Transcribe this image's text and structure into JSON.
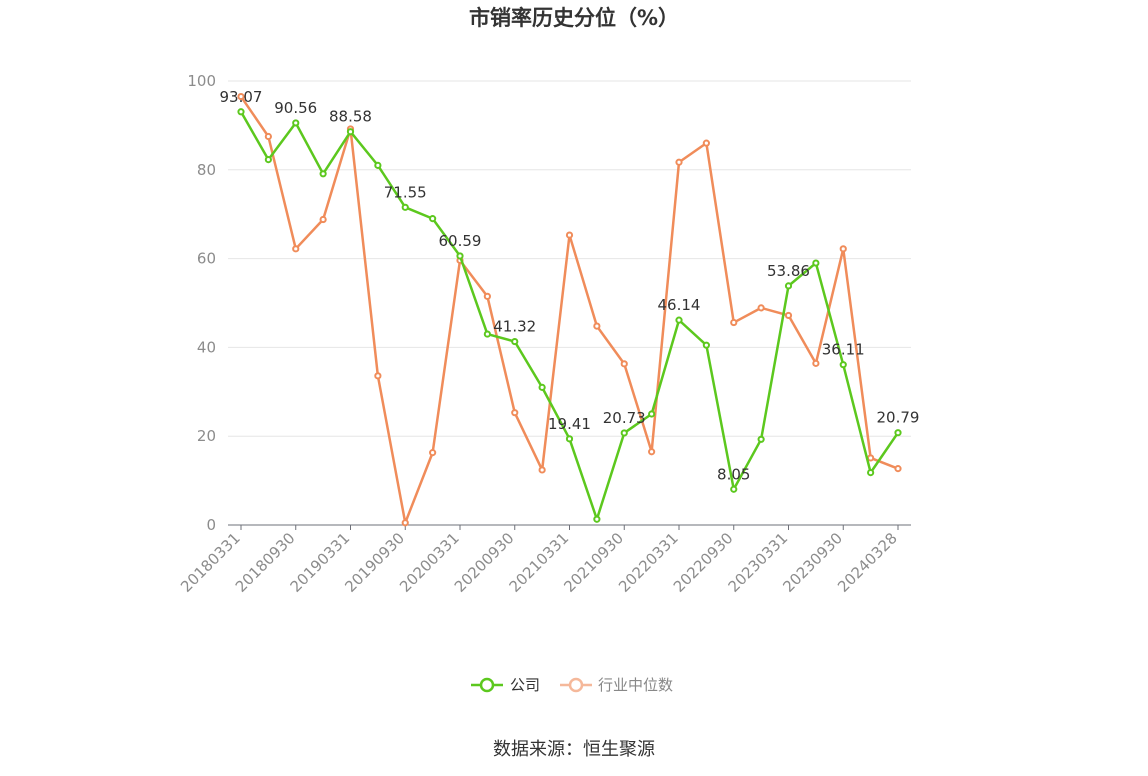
{
  "chart_data": {
    "type": "line",
    "title": "市销率历史分位（%）",
    "source": "数据来源：恒生聚源",
    "ylim": [
      0,
      100
    ],
    "y_ticks": [
      0,
      20,
      40,
      60,
      80,
      100
    ],
    "x_tick_labels": [
      "20180331",
      "20180930",
      "20190331",
      "20190930",
      "20200331",
      "20200930",
      "20210331",
      "20210930",
      "20220331",
      "20220930",
      "20230331",
      "20230930",
      "20240328"
    ],
    "grid": true,
    "legend_position": "bottom",
    "series": [
      {
        "name": "公司",
        "color": "#5cc81e",
        "values": [
          93.07,
          82.3,
          90.56,
          79.1,
          88.58,
          81.0,
          71.55,
          69.0,
          60.59,
          43.0,
          41.32,
          31.0,
          19.41,
          1.3,
          20.73,
          25.0,
          46.14,
          40.5,
          8.05,
          19.3,
          53.86,
          59.0,
          36.11,
          11.8,
          20.79
        ],
        "labels": {
          "0": "93.07",
          "2": "90.56",
          "4": "88.58",
          "6": "71.55",
          "8": "60.59",
          "10": "41.32",
          "12": "19.41",
          "14": "20.73",
          "16": "46.14",
          "18": "8.05",
          "20": "53.86",
          "22": "36.11",
          "24": "20.79"
        }
      },
      {
        "name": "行业中位数",
        "color": "#f08c5a",
        "values": [
          96.5,
          87.5,
          62.2,
          68.8,
          89.2,
          33.6,
          0.5,
          16.3,
          59.6,
          51.5,
          25.3,
          12.4,
          65.3,
          44.8,
          36.3,
          16.5,
          81.7,
          86.0,
          45.6,
          48.9,
          47.2,
          36.4,
          62.2,
          15.1,
          12.7
        ]
      }
    ]
  }
}
